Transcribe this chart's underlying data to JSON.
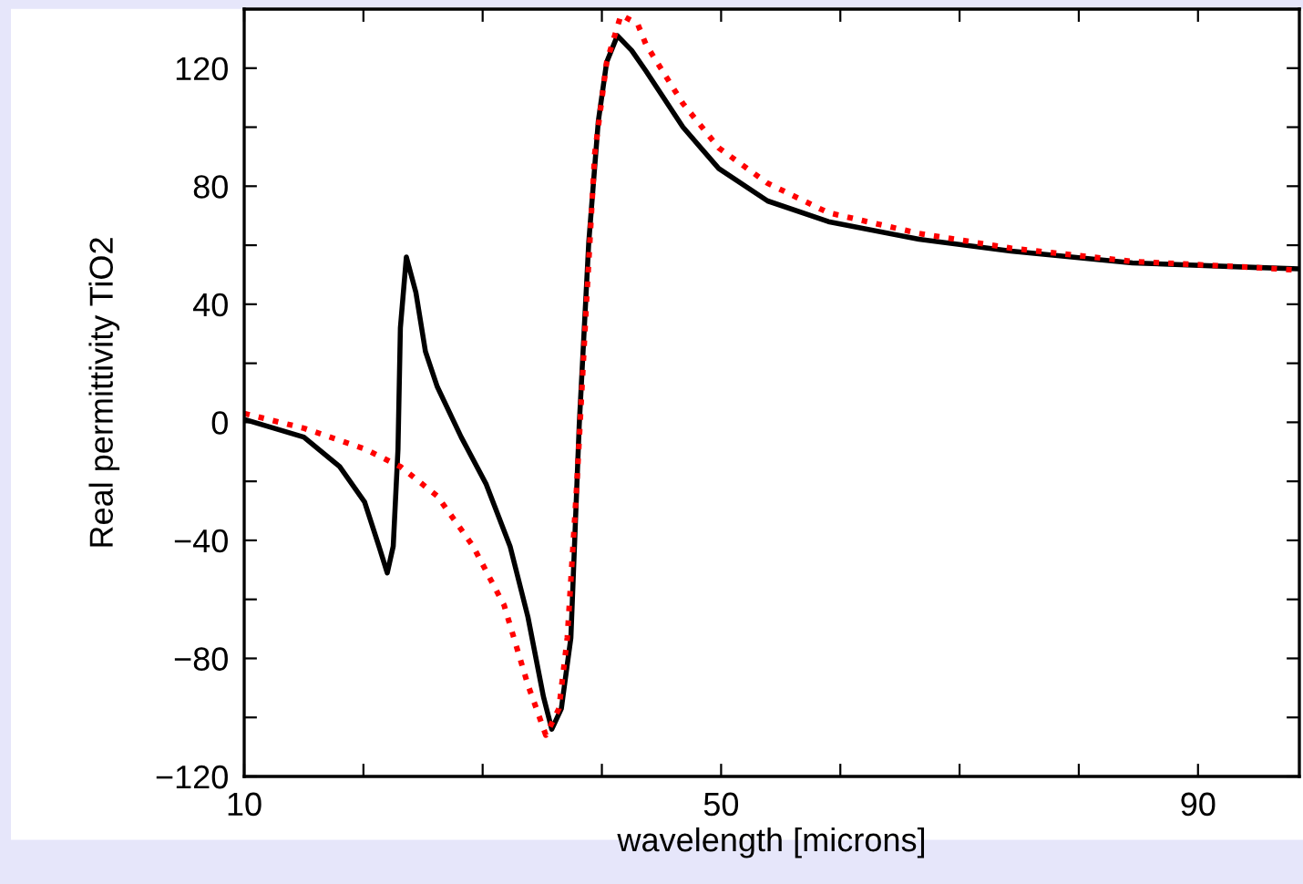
{
  "chart_data": {
    "type": "line",
    "xlabel": "wavelength [microns]",
    "ylabel": "Real permittivity TiO2",
    "xlim": [
      10,
      98.5
    ],
    "ylim": [
      -120,
      140
    ],
    "xticks": [
      10,
      {
        "value": 20,
        "label": null
      },
      {
        "value": 30,
        "label": null
      },
      {
        "value": 40,
        "label": null
      },
      50,
      {
        "value": 60,
        "label": null
      },
      {
        "value": 70,
        "label": null
      },
      {
        "value": 80,
        "label": null
      },
      90
    ],
    "yticks": [
      -120,
      {
        "value": -100,
        "label": null
      },
      -80,
      {
        "value": -60,
        "label": null
      },
      -40,
      {
        "value": -20,
        "label": null
      },
      0,
      {
        "value": 20,
        "label": null
      },
      40,
      {
        "value": 60,
        "label": null
      },
      80,
      {
        "value": 100,
        "label": null
      },
      120
    ],
    "grid": false,
    "legend": false,
    "series": [
      {
        "color": "#000000",
        "line_style": "solid",
        "x": [
          10,
          15,
          18.0,
          20.1,
          21.3,
          22.0,
          22.5,
          22.9,
          23.1,
          23.6,
          24.4,
          25.2,
          26.2,
          28.2,
          30.3,
          32.3,
          33.8,
          35.1,
          35.8,
          36.6,
          37.4,
          38.1,
          38.9,
          39.7,
          40.4,
          41.3,
          42.5,
          43.7,
          46.8,
          49.8,
          53.9,
          59.0,
          66.6,
          74.3,
          84.5,
          94.6,
          98.5
        ],
        "values": [
          1,
          -5,
          -15,
          -27,
          -42,
          -51,
          -42,
          -9,
          32,
          56,
          44,
          24,
          12,
          -5,
          -21,
          -42,
          -66,
          -93,
          -104,
          -97,
          -73,
          -1,
          61,
          102,
          122,
          131,
          126,
          119,
          100,
          86,
          75,
          68,
          62,
          58,
          54,
          52.5,
          52
        ]
      },
      {
        "color": "#ff0000",
        "line_style": "dotted",
        "x": [
          10,
          15,
          20.1,
          23.1,
          26.2,
          29.2,
          31.8,
          33.8,
          35.3,
          36.4,
          37.1,
          37.9,
          38.7,
          39.4,
          40.4,
          41.6,
          43.0,
          43.7,
          46.8,
          49.8,
          53.9,
          59.0,
          66.6,
          74.3,
          84.5,
          94.6,
          98.5
        ],
        "values": [
          3,
          -2,
          -9,
          -15,
          -25,
          -42,
          -62,
          -89,
          -106,
          -97,
          -73,
          -21,
          40,
          91,
          122,
          138,
          135,
          128,
          108,
          93,
          81,
          71,
          64,
          59,
          54.5,
          52.5,
          51.5
        ]
      }
    ]
  }
}
